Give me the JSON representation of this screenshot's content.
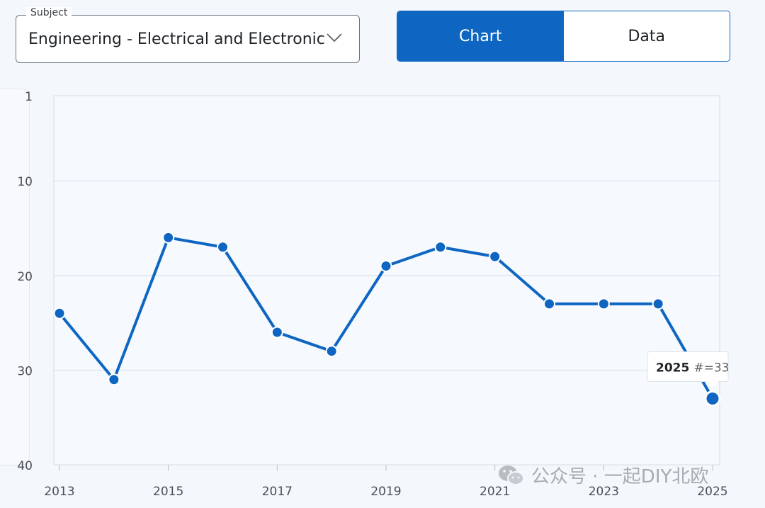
{
  "subject": {
    "legend": "Subject",
    "value": "Engineering - Electrical and Electronic"
  },
  "view_toggle": {
    "chart_label": "Chart",
    "data_label": "Data",
    "active": "Chart"
  },
  "tooltip": {
    "year": "2025",
    "rank_text": "#=33"
  },
  "watermark": {
    "text": "公众号 · 一起DIY北欧"
  },
  "colors": {
    "accent": "#0e66c2",
    "grid": "#d9dee5",
    "axis_text": "#4a4f57"
  },
  "chart_data": {
    "type": "line",
    "title": "",
    "xlabel": "",
    "ylabel": "",
    "y_inverted": true,
    "ylim": [
      1,
      40
    ],
    "xlim": [
      2013,
      2025
    ],
    "y_ticks": [
      1,
      10,
      20,
      30,
      40
    ],
    "x_ticks": [
      2013,
      2015,
      2017,
      2019,
      2021,
      2023,
      2025
    ],
    "grid": true,
    "series": [
      {
        "x": [
          2013,
          2014,
          2015,
          2016,
          2017,
          2018,
          2019,
          2020,
          2021,
          2022,
          2023,
          2024,
          2025
        ],
        "values": [
          24,
          31,
          16,
          17,
          26,
          28,
          19,
          17,
          18,
          23,
          23,
          23,
          33
        ]
      }
    ],
    "highlighted_point": {
      "x": 2025,
      "y": 33
    }
  }
}
